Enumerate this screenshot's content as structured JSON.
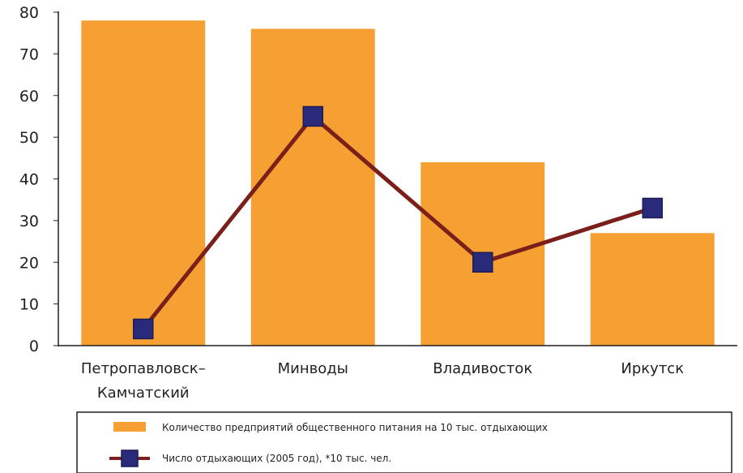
{
  "chart_data": {
    "type": "bar",
    "categories": [
      "Петропавловск–Камчатский",
      "Минводы",
      "Владивосток",
      "Иркутск"
    ],
    "category_lines": [
      [
        "Петропавловск–",
        "Камчатский"
      ],
      [
        "Минводы"
      ],
      [
        "Владивосток"
      ],
      [
        "Иркутск"
      ]
    ],
    "ylim": [
      0,
      80
    ],
    "yticks": [
      "0",
      "10",
      "20",
      "30",
      "40",
      "50",
      "60",
      "70",
      "80"
    ],
    "grid": false,
    "legend_position": "bottom",
    "series": [
      {
        "name": "Количество предприятий общественного питания на 10 тыс. отдыхающих",
        "type": "bar",
        "color": "#f6a034",
        "values": [
          78,
          76,
          44,
          27
        ]
      },
      {
        "name": "Число отдыхающих (2005 год), *10 тыс. чел.",
        "type": "line",
        "color": "#7a1f1a",
        "marker_color": "#2a2a7a",
        "values": [
          4,
          55,
          20,
          33
        ]
      }
    ]
  }
}
